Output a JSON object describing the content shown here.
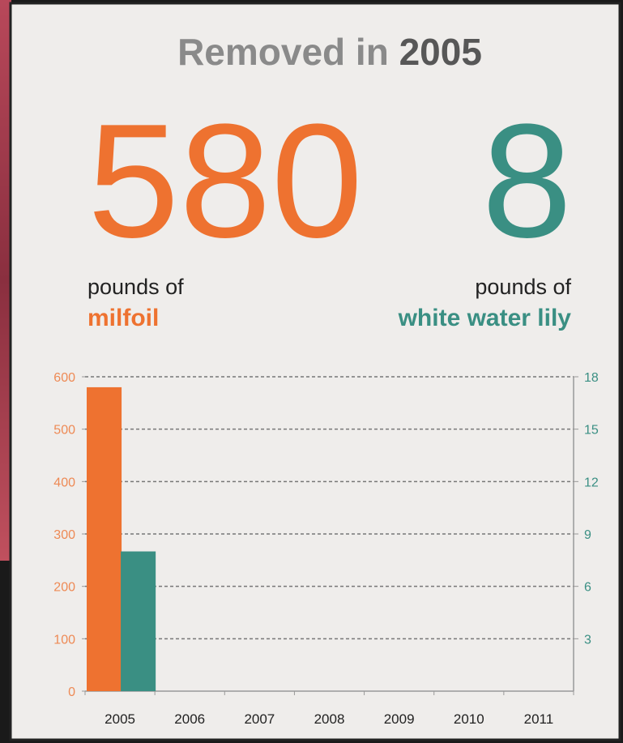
{
  "header": {
    "title": "Removed in",
    "year": "2005"
  },
  "callouts": [
    {
      "prefix": "pounds of"
    },
    {
      "prefix": "pounds of"
    }
  ],
  "chart_data": {
    "type": "bar",
    "categories": [
      "2005",
      "2006",
      "2007",
      "2008",
      "2009",
      "2010",
      "2011"
    ],
    "series": [
      {
        "name": "milfoil",
        "color": "#ee7230",
        "values": [
          580,
          null,
          null,
          null,
          null,
          null,
          null
        ]
      },
      {
        "name": "white water lily",
        "color": "#3a8f83",
        "axis": "y2",
        "values": [
          8,
          null,
          null,
          null,
          null,
          null,
          null
        ]
      }
    ],
    "ylim": [
      0,
      600
    ],
    "yticks": [
      0,
      100,
      200,
      300,
      400,
      500,
      600
    ],
    "y2lim": [
      0,
      18
    ],
    "y2ticks": [
      3,
      6,
      9,
      12,
      15,
      18
    ],
    "grid": true
  }
}
